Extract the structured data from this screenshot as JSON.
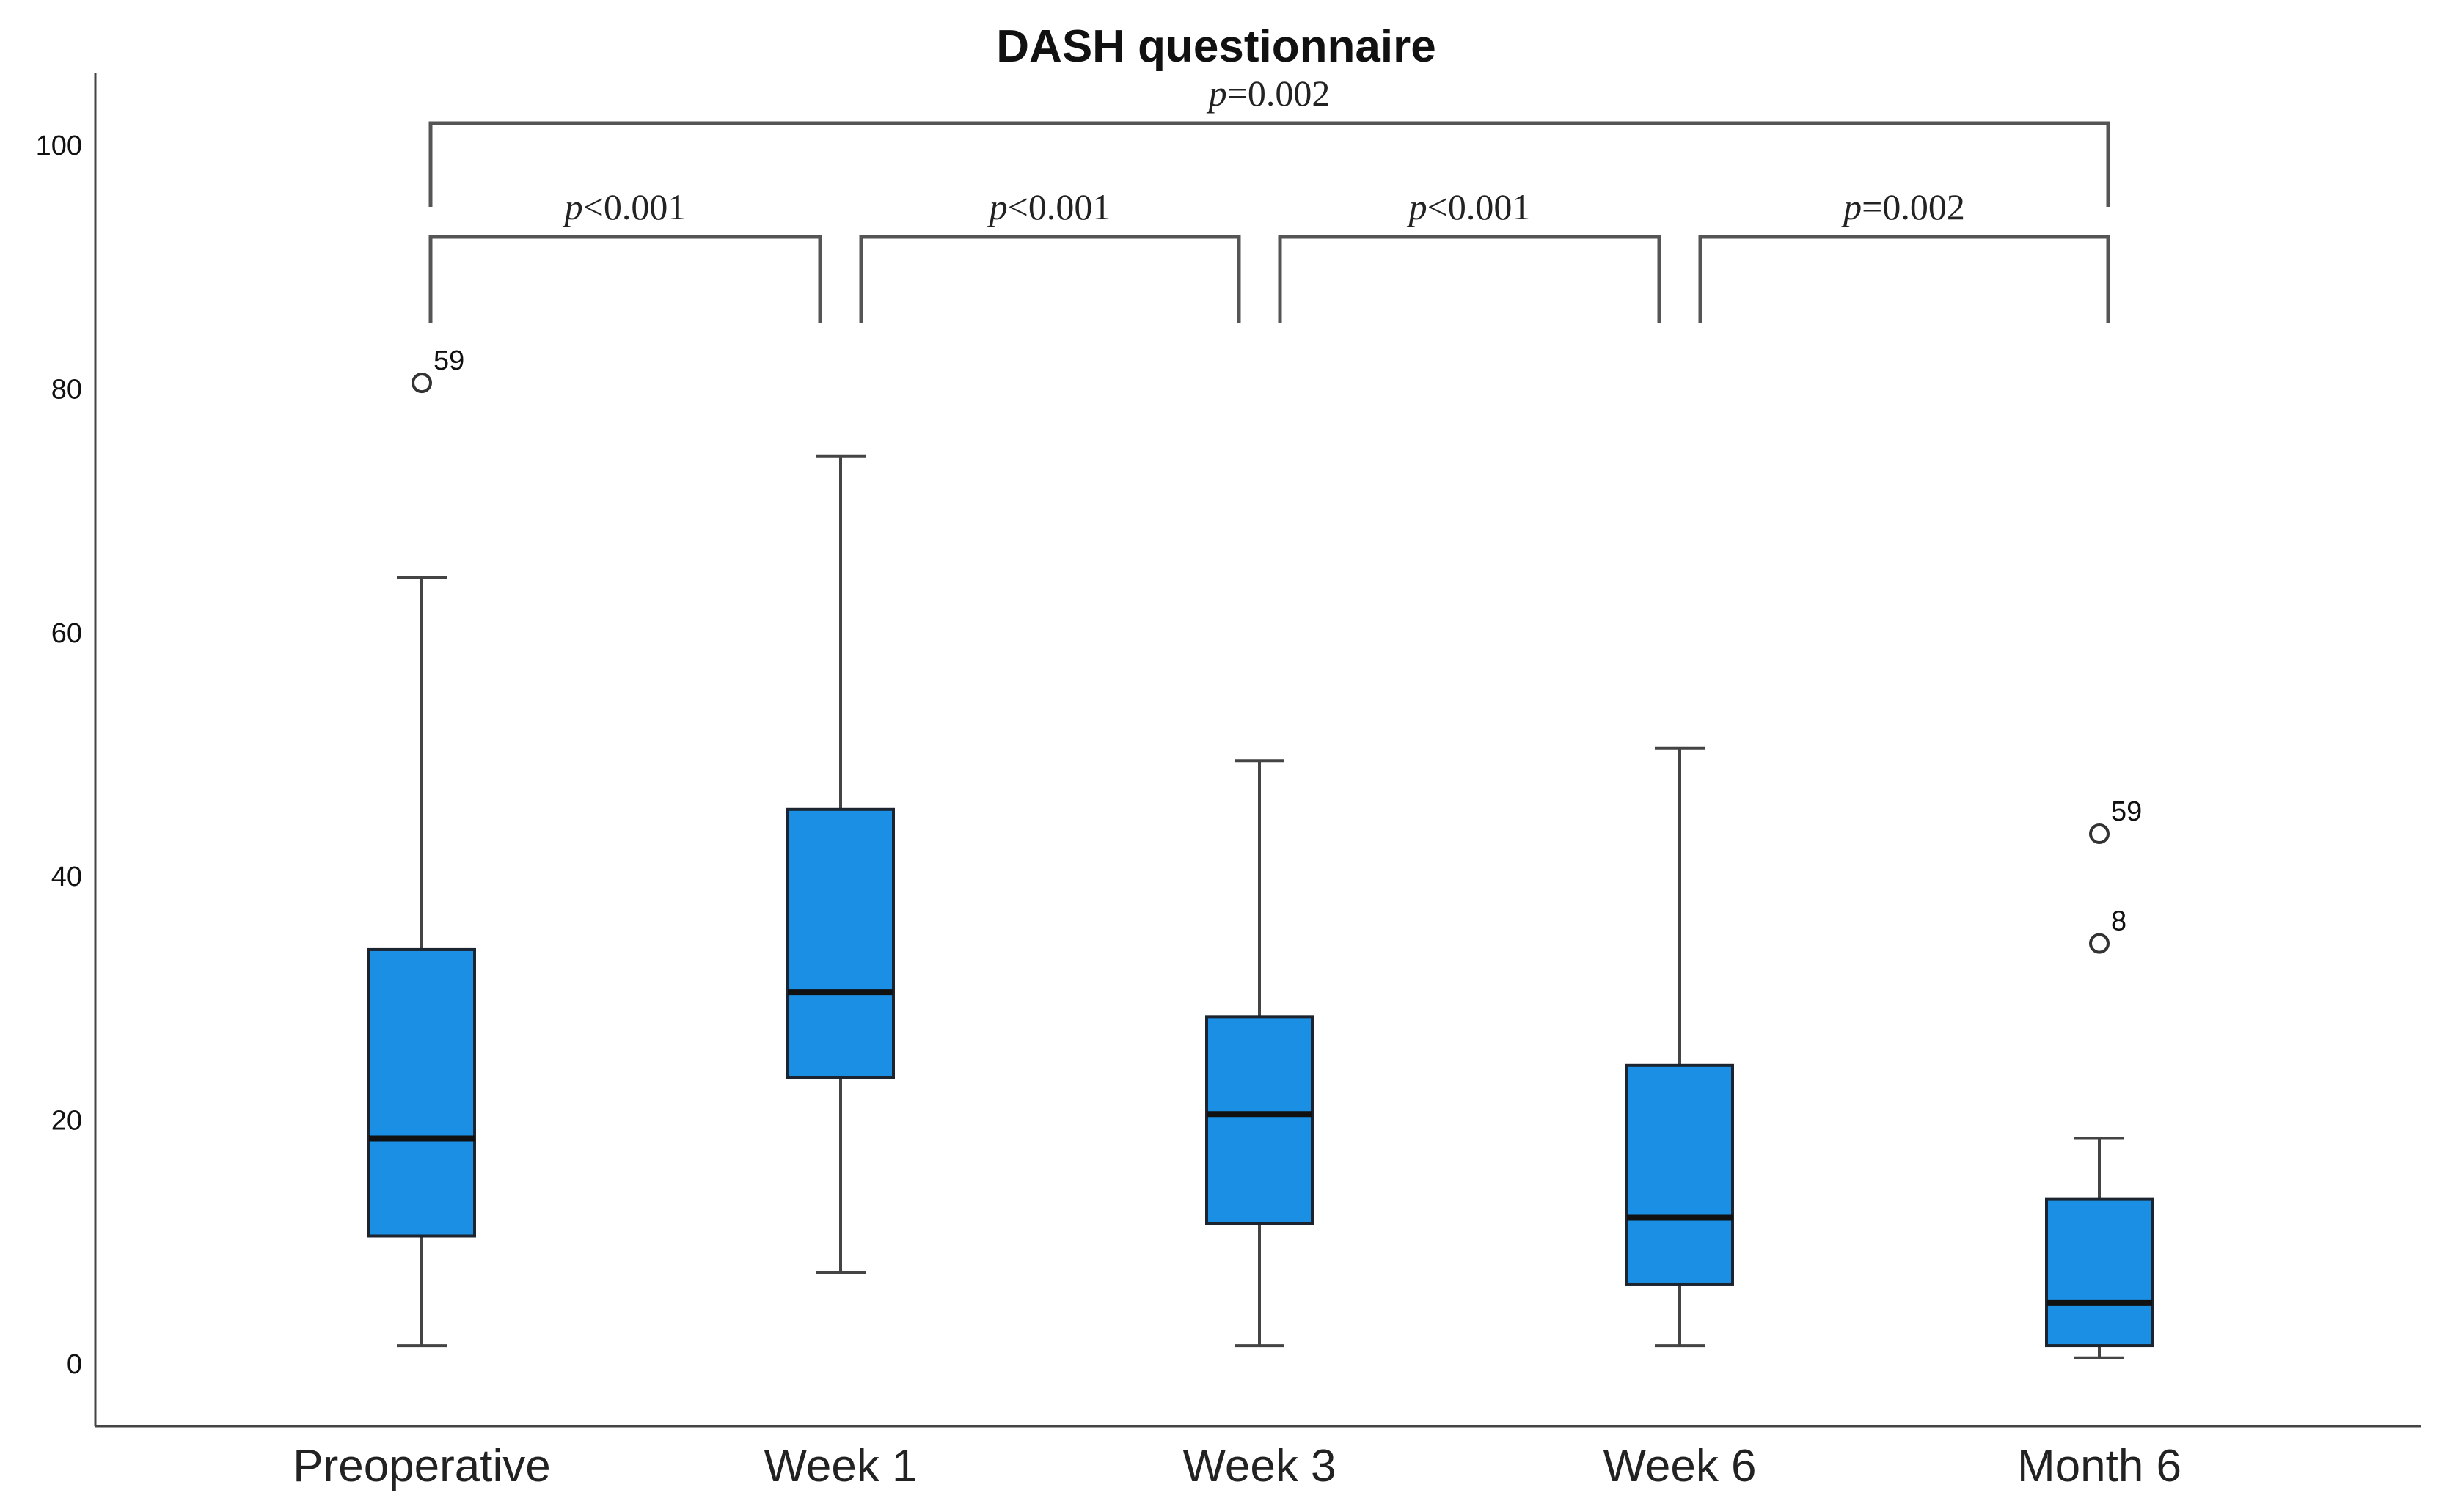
{
  "chart_data": {
    "type": "box",
    "title": "DASH questionnaire",
    "xlabel": "",
    "ylabel": "",
    "ylim": [
      -5,
      105
    ],
    "yticks": [
      0,
      20,
      40,
      60,
      80,
      100
    ],
    "categories": [
      "Preoperative",
      "Week 1",
      "Week 3",
      "Week 6",
      "Month 6"
    ],
    "boxes": [
      {
        "category": "Preoperative",
        "whisker_low": 1.5,
        "q1": 10.5,
        "median": 18.5,
        "q3": 34,
        "whisker_high": 64.5,
        "outliers": [
          {
            "value": 80.5,
            "label": "59"
          }
        ]
      },
      {
        "category": "Week 1",
        "whisker_low": 7.5,
        "q1": 23.5,
        "median": 30.5,
        "q3": 45.5,
        "whisker_high": 74.5,
        "outliers": []
      },
      {
        "category": "Week 3",
        "whisker_low": 1.5,
        "q1": 11.5,
        "median": 20.5,
        "q3": 28.5,
        "whisker_high": 49.5,
        "outliers": []
      },
      {
        "category": "Week 6",
        "whisker_low": 1.5,
        "q1": 6.5,
        "median": 12,
        "q3": 24.5,
        "whisker_high": 50.5,
        "outliers": []
      },
      {
        "category": "Month 6",
        "whisker_low": 0.5,
        "q1": 1.5,
        "median": 5,
        "q3": 13.5,
        "whisker_high": 18.5,
        "outliers": [
          {
            "value": 43.5,
            "label": "59"
          },
          {
            "value": 34.5,
            "label": "8"
          }
        ]
      }
    ],
    "comparisons": [
      {
        "from": "Preoperative",
        "to": "Month 6",
        "p_symbol": "p",
        "p_rest": "=0.002"
      },
      {
        "from": "Preoperative",
        "to": "Week 1",
        "p_symbol": "p",
        "p_rest": "<0.001"
      },
      {
        "from": "Week 1",
        "to": "Week 3",
        "p_symbol": "p",
        "p_rest": "<0.001"
      },
      {
        "from": "Week 3",
        "to": "Week 6",
        "p_symbol": "p",
        "p_rest": "<0.001"
      },
      {
        "from": "Week 6",
        "to": "Month 6",
        "p_symbol": "p",
        "p_rest": "=0.002"
      }
    ]
  }
}
